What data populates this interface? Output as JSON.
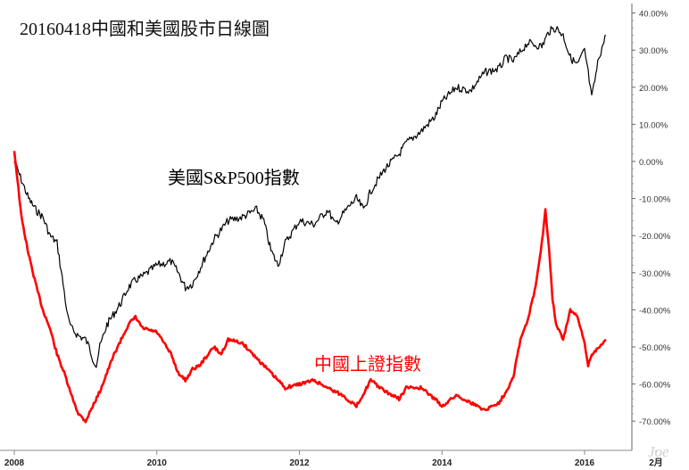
{
  "chart_data": {
    "type": "line",
    "title": "20160418中國和美國股市日線圖",
    "ylim": [
      -75,
      42
    ],
    "y_tick_values": [
      40,
      30,
      20,
      10,
      0,
      -10,
      -20,
      -30,
      -40,
      -50,
      -60,
      -70
    ],
    "y_tick_labels": [
      "40.00%",
      "30.00%",
      "20.00%",
      "10.00%",
      "0.00%",
      "-10.00%",
      "-20.00%",
      "-30.00%",
      "-40.00%",
      "-50.00%",
      "-60.00%",
      "-70.00%"
    ],
    "x_tick_values": [
      2008,
      2010,
      2012,
      2014,
      2016,
      2016.1
    ],
    "x_tick_labels": [
      "2008",
      "2010",
      "2012",
      "2014",
      "2016",
      "2月"
    ],
    "xlim": [
      2008,
      2016.3
    ],
    "grid": false,
    "watermark": "Joe",
    "series": [
      {
        "name": "美國S&P500指數",
        "color": "#000000",
        "label_text": "美國S&P500指數",
        "x": [
          2008.0,
          2008.1,
          2008.2,
          2008.3,
          2008.4,
          2008.5,
          2008.6,
          2008.7,
          2008.75,
          2008.8,
          2008.9,
          2009.0,
          2009.05,
          2009.1,
          2009.15,
          2009.2,
          2009.3,
          2009.4,
          2009.5,
          2009.6,
          2009.7,
          2009.8,
          2010.0,
          2010.2,
          2010.3,
          2010.4,
          2010.5,
          2010.6,
          2010.7,
          2010.8,
          2011.0,
          2011.2,
          2011.4,
          2011.5,
          2011.6,
          2011.7,
          2011.8,
          2012.0,
          2012.2,
          2012.4,
          2012.5,
          2012.7,
          2012.8,
          2012.9,
          2013.0,
          2013.2,
          2013.4,
          2013.5,
          2013.7,
          2013.9,
          2014.0,
          2014.2,
          2014.4,
          2014.6,
          2014.8,
          2014.9,
          2015.0,
          2015.2,
          2015.4,
          2015.5,
          2015.6,
          2015.7,
          2015.8,
          2015.9,
          2016.0,
          2016.05,
          2016.1,
          2016.2,
          2016.3
        ],
        "values": [
          0,
          -5,
          -10,
          -13,
          -15,
          -20,
          -22,
          -35,
          -42,
          -45,
          -47,
          -48,
          -50,
          -53,
          -55,
          -50,
          -44,
          -41,
          -38,
          -34,
          -32,
          -31,
          -28,
          -27,
          -30,
          -34,
          -33,
          -29,
          -25,
          -21,
          -16,
          -15,
          -13,
          -16,
          -24,
          -28,
          -22,
          -16,
          -17,
          -13,
          -17,
          -12,
          -10,
          -13,
          -8,
          -2,
          2,
          5,
          8,
          12,
          16,
          20,
          19,
          24,
          25,
          28,
          27,
          32,
          31,
          35,
          36,
          34,
          28,
          26,
          30,
          24,
          17,
          28,
          34
        ]
      },
      {
        "name": "中國上證指數",
        "color": "#ff0000",
        "label_text": "中國上證指數",
        "x": [
          2008.0,
          2008.1,
          2008.2,
          2008.3,
          2008.4,
          2008.5,
          2008.6,
          2008.7,
          2008.8,
          2008.9,
          2009.0,
          2009.1,
          2009.2,
          2009.3,
          2009.4,
          2009.5,
          2009.6,
          2009.7,
          2009.8,
          2010.0,
          2010.2,
          2010.3,
          2010.4,
          2010.5,
          2010.6,
          2010.8,
          2010.9,
          2011.0,
          2011.2,
          2011.4,
          2011.6,
          2011.8,
          2012.0,
          2012.2,
          2012.4,
          2012.6,
          2012.8,
          2013.0,
          2013.2,
          2013.4,
          2013.5,
          2013.7,
          2013.9,
          2014.0,
          2014.2,
          2014.4,
          2014.6,
          2014.8,
          2014.9,
          2015.0,
          2015.1,
          2015.2,
          2015.3,
          2015.4,
          2015.45,
          2015.5,
          2015.55,
          2015.6,
          2015.7,
          2015.8,
          2015.9,
          2016.0,
          2016.05,
          2016.1,
          2016.2,
          2016.3
        ],
        "values": [
          3,
          -15,
          -25,
          -33,
          -40,
          -45,
          -52,
          -57,
          -63,
          -68,
          -70,
          -66,
          -62,
          -57,
          -52,
          -48,
          -44,
          -42,
          -45,
          -46,
          -52,
          -57,
          -59,
          -56,
          -55,
          -50,
          -52,
          -48,
          -49,
          -53,
          -57,
          -61,
          -60,
          -59,
          -61,
          -63,
          -66,
          -59,
          -62,
          -64,
          -61,
          -61,
          -64,
          -66,
          -63,
          -65,
          -67,
          -65,
          -62,
          -58,
          -48,
          -43,
          -35,
          -22,
          -13,
          -23,
          -37,
          -44,
          -48,
          -40,
          -42,
          -49,
          -55,
          -52,
          -50,
          -48
        ]
      }
    ]
  }
}
